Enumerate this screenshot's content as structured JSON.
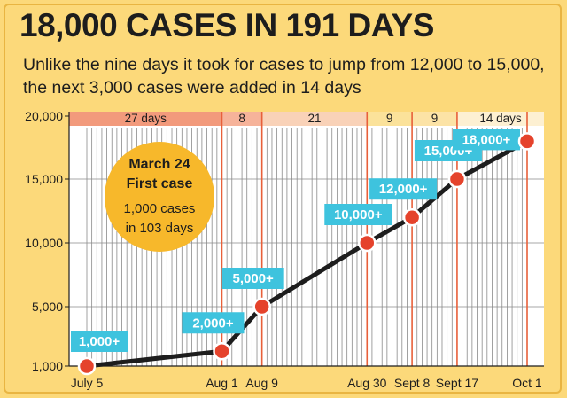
{
  "header": {
    "title": "18,000 CASES IN 191 DAYS",
    "subtitle": "Unlike the nine days it took for cases to jump from 12,000 to 15,000, the next 3,000 cases were added in 14 days"
  },
  "callout": {
    "line1": "March 24",
    "line2": "First case",
    "line3": "1,000 cases",
    "line4": "in 103 days"
  },
  "chart_data": {
    "type": "line",
    "title": "18,000 CASES IN 191 DAYS",
    "ylim": [
      1000,
      20000
    ],
    "yticks": [
      1000,
      5000,
      10000,
      15000,
      20000
    ],
    "ytick_labels": [
      "1,000",
      "5,000",
      "10,000",
      "15,000",
      "20,000"
    ],
    "x_dates": [
      "July 5",
      "Aug 1",
      "Aug 9",
      "Aug 30",
      "Sept 8",
      "Sept 17",
      "Oct 1"
    ],
    "x_labels": [
      "July 5",
      "Aug 1",
      "Aug 9",
      "Aug 30",
      "Sept 8",
      "Sept 17",
      "Oct 1"
    ],
    "x_day_of_year": [
      186,
      213,
      221,
      242,
      251,
      260,
      274
    ],
    "values": [
      1000,
      2000,
      5000,
      10000,
      12000,
      15000,
      18000
    ],
    "point_labels": [
      "1,000+",
      "2,000+",
      "5,000+",
      "10,000+",
      "12,000+",
      "15,000+",
      "18,000+"
    ],
    "segments": [
      {
        "label": "27 days",
        "color": "#f29a7c"
      },
      {
        "label": "8",
        "color": "#f6b39a"
      },
      {
        "label": "21",
        "color": "#f9d2b8"
      },
      {
        "label": "9",
        "color": "#fbe29a"
      },
      {
        "label": "9",
        "color": "#fce3a6"
      },
      {
        "label": "14 days",
        "color": "#fdf0d2"
      }
    ],
    "grid": true,
    "colors": {
      "line": "#1d1d1d",
      "marker": "#e5432c",
      "label_box": "#3ec3de",
      "vline": "#e8603a",
      "callout": "#f7b82b"
    }
  }
}
